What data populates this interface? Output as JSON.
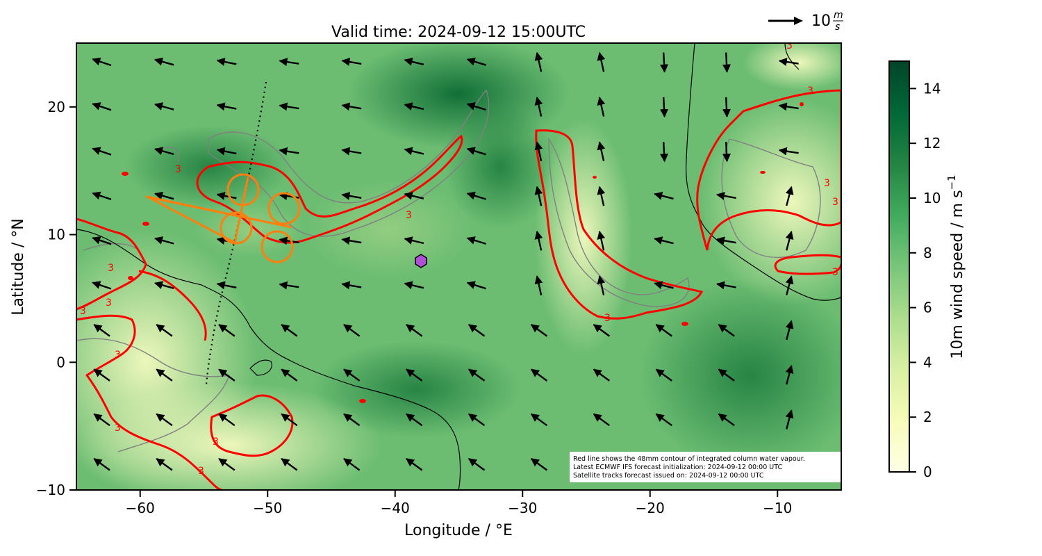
{
  "title": "Valid time: 2024-09-12 15:00UTC",
  "quiver_key": {
    "arrow": "→",
    "label": "10",
    "unit_num": "m",
    "unit_den": "s"
  },
  "map": {
    "lon_range": [
      -65,
      -5
    ],
    "lat_range": [
      -10,
      25
    ],
    "xlabel": "Longitude / °E",
    "ylabel": "Latitude / °N",
    "xticks": [
      {
        "v": -60,
        "label": "−60"
      },
      {
        "v": -50,
        "label": "−50"
      },
      {
        "v": -40,
        "label": "−40"
      },
      {
        "v": -30,
        "label": "−30"
      },
      {
        "v": -20,
        "label": "−20"
      },
      {
        "v": -10,
        "label": "−10"
      }
    ],
    "yticks": [
      {
        "v": 20,
        "label": "20"
      },
      {
        "v": 10,
        "label": "10"
      },
      {
        "v": 0,
        "label": "0"
      },
      {
        "v": -10,
        "label": "−10"
      }
    ],
    "contour_label": "3",
    "colors": {
      "contour": "#ff0000",
      "track": "#ff7f0e",
      "coast": "#000000",
      "coast_alt": "#808080",
      "marker": "#b050d8"
    },
    "marker": {
      "lon": -38,
      "lat": 8
    }
  },
  "colorbar": {
    "label": "10m wind speed / m s",
    "label_sup": "−1",
    "range": [
      0,
      15
    ],
    "ticks": [
      "0",
      "2",
      "4",
      "6",
      "8",
      "10",
      "12",
      "14"
    ],
    "colors": [
      "#ffffe5",
      "#f7fcb9",
      "#d9f0a3",
      "#addd8e",
      "#78c679",
      "#41ab5d",
      "#238443",
      "#006837",
      "#004529"
    ]
  },
  "notes": {
    "line1": "Red line shows the 48mm contour of integrated column water vapour.",
    "line2": "Latest ECMWF IFS forecast initialization: 2024-09-12 00:00 UTC",
    "line3": "Satellite tracks forecast issued on: 2024-09-12 00:00 UTC"
  }
}
